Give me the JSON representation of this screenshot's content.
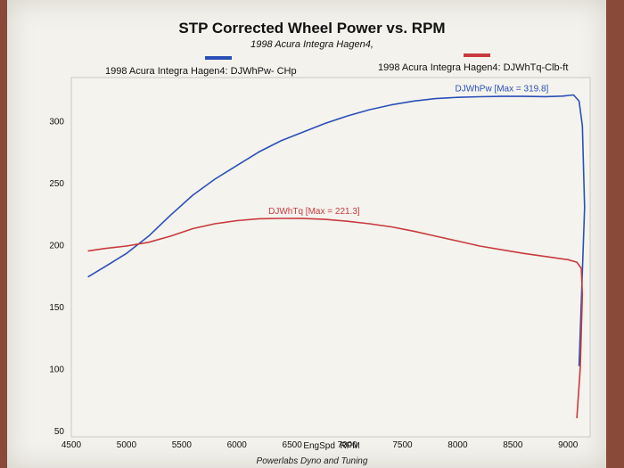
{
  "chart_data": {
    "type": "line",
    "title": "STP Corrected Wheel Power vs. RPM",
    "subtitle": "1998 Acura Integra Hagen4,",
    "xlabel": "EngSpd  RPM",
    "ylabel": "",
    "xlim": [
      4500,
      9200
    ],
    "ylim": [
      45,
      335
    ],
    "x_ticks": [
      4500,
      5000,
      5500,
      6000,
      6500,
      7000,
      7500,
      8000,
      8500,
      9000
    ],
    "y_ticks": [
      50,
      100,
      150,
      200,
      250,
      300
    ],
    "grid": false,
    "series": [
      {
        "name": "1998 Acura Integra Hagen4: DJWhPw- CHp",
        "color": "#2b4fb8",
        "annotation": "DJWhPw [Max = 319.8]",
        "x": [
          4650,
          4800,
          5000,
          5200,
          5400,
          5600,
          5800,
          6000,
          6200,
          6400,
          6600,
          6800,
          7000,
          7200,
          7400,
          7600,
          7800,
          8000,
          8200,
          8400,
          8600,
          8800,
          8950,
          9050,
          9100,
          9130,
          9150,
          9100
        ],
        "y": [
          174,
          182,
          193,
          207,
          224,
          240,
          253,
          264,
          275,
          284,
          291,
          298,
          304,
          309,
          313,
          316,
          318,
          319,
          319.5,
          319.8,
          319.8,
          319.6,
          320,
          321,
          316,
          296,
          230,
          102
        ]
      },
      {
        "name": "1998 Acura Integra Hagen4: DJWhTq-Clb-ft",
        "color": "#c83a3e",
        "annotation": "DJWhTq [Max = 221.3]",
        "x": [
          4650,
          4800,
          5000,
          5200,
          5400,
          5600,
          5800,
          6000,
          6200,
          6400,
          6600,
          6800,
          7000,
          7200,
          7400,
          7600,
          7800,
          8000,
          8200,
          8400,
          8600,
          8800,
          9000,
          9080,
          9120,
          9130,
          9110,
          9080
        ],
        "y": [
          195,
          197,
          199,
          202,
          207,
          213,
          217,
          219.5,
          221,
          221.3,
          221.2,
          220.5,
          219,
          217,
          214.5,
          211,
          207,
          203,
          199,
          196,
          193,
          190.5,
          188,
          186,
          181,
          160,
          100,
          60
        ]
      }
    ]
  },
  "footer": "Powerlabs Dyno and Tuning"
}
